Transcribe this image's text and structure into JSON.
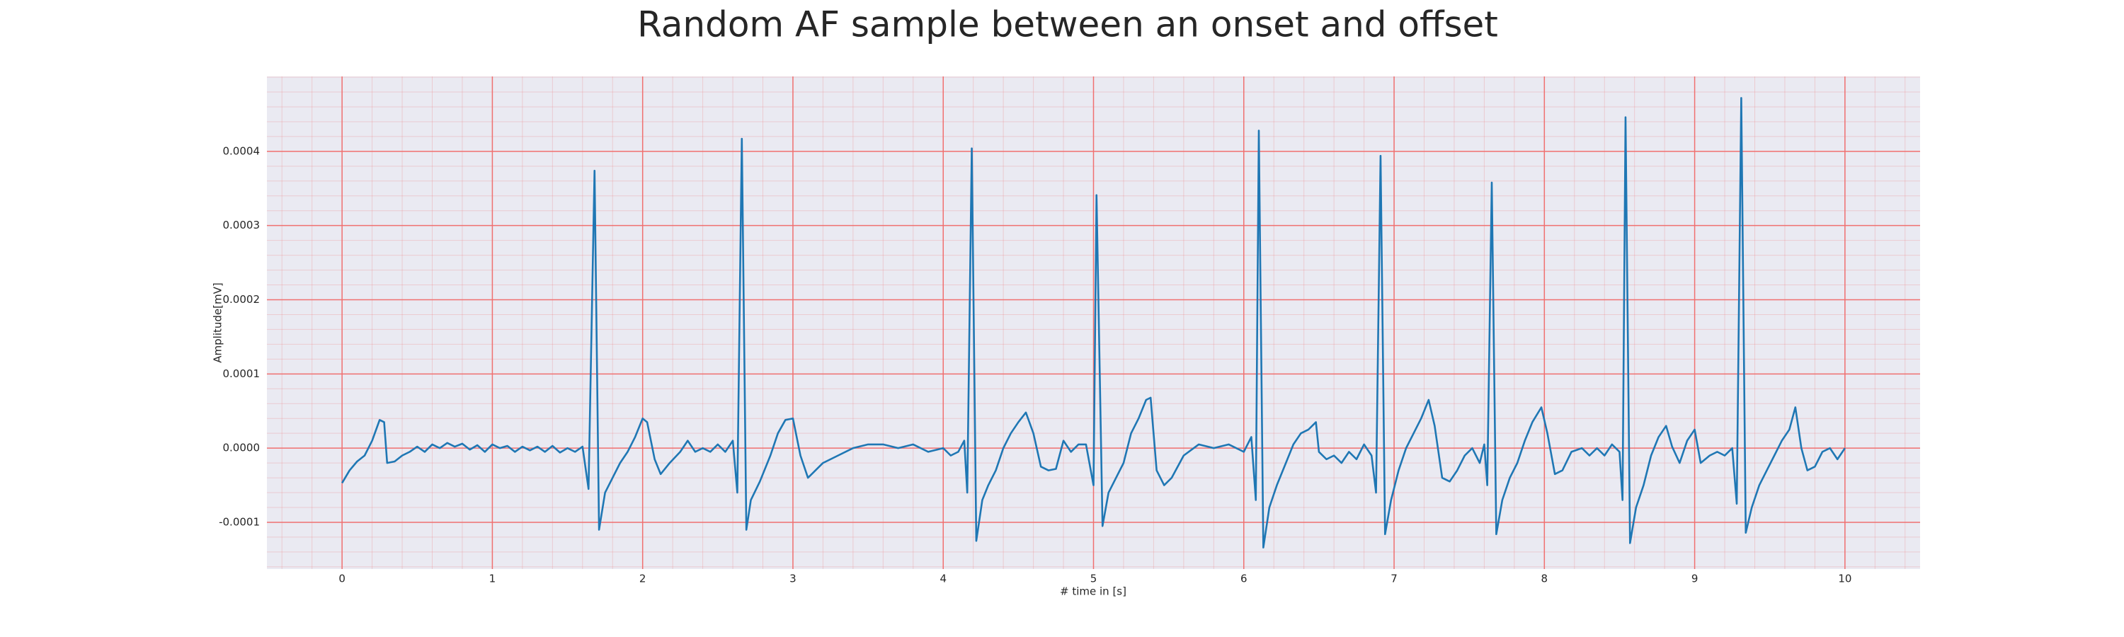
{
  "chart_data": {
    "type": "line",
    "title": "Random AF sample between an onset and offset",
    "xlabel": "# time in [s]",
    "ylabel": "Amplitude[mV]",
    "color": "#1f77b4",
    "grid": true,
    "grid_color": "#f07070",
    "minor_grid": true,
    "background": "#eaeaf2",
    "xlim": [
      -0.5,
      10.5
    ],
    "ylim": [
      -0.000163,
      0.000501
    ],
    "xticks": [
      0,
      1,
      2,
      3,
      4,
      5,
      6,
      7,
      8,
      9,
      10
    ],
    "yticks": [
      {
        "value": -0.0001,
        "label": "-0.0001"
      },
      {
        "value": 0,
        "label": "0.0000"
      },
      {
        "value": 0.0001,
        "label": "0.0001"
      },
      {
        "value": 0.0002,
        "label": "0.0002"
      },
      {
        "value": 0.0003,
        "label": "0.0003"
      },
      {
        "value": 0.0004,
        "label": "0.0004"
      }
    ],
    "x": [
      0,
      0.05,
      0.1,
      0.15,
      0.2,
      0.25,
      0.28,
      0.3,
      0.35,
      0.4,
      0.45,
      0.5,
      0.55,
      0.6,
      0.65,
      0.7,
      0.75,
      0.8,
      0.85,
      0.9,
      0.95,
      1.0,
      1.05,
      1.1,
      1.15,
      1.2,
      1.25,
      1.3,
      1.35,
      1.4,
      1.45,
      1.5,
      1.55,
      1.6,
      1.64,
      1.68,
      1.71,
      1.75,
      1.8,
      1.85,
      1.9,
      1.95,
      2.0,
      2.03,
      2.08,
      2.12,
      2.18,
      2.25,
      2.3,
      2.35,
      2.4,
      2.45,
      2.5,
      2.55,
      2.6,
      2.63,
      2.66,
      2.69,
      2.72,
      2.78,
      2.85,
      2.9,
      2.95,
      3.0,
      3.05,
      3.1,
      3.15,
      3.2,
      3.3,
      3.4,
      3.5,
      3.6,
      3.7,
      3.8,
      3.9,
      4.0,
      4.05,
      4.1,
      4.14,
      4.16,
      4.19,
      4.22,
      4.26,
      4.3,
      4.35,
      4.4,
      4.45,
      4.5,
      4.55,
      4.6,
      4.65,
      4.7,
      4.75,
      4.8,
      4.85,
      4.9,
      4.95,
      5.0,
      5.02,
      5.06,
      5.1,
      5.15,
      5.2,
      5.25,
      5.3,
      5.35,
      5.38,
      5.42,
      5.47,
      5.52,
      5.6,
      5.7,
      5.8,
      5.9,
      6.0,
      6.05,
      6.08,
      6.1,
      6.13,
      6.17,
      6.22,
      6.28,
      6.33,
      6.38,
      6.43,
      6.48,
      6.5,
      6.55,
      6.6,
      6.65,
      6.7,
      6.75,
      6.8,
      6.85,
      6.88,
      6.91,
      6.94,
      6.98,
      7.03,
      7.08,
      7.13,
      7.18,
      7.23,
      7.27,
      7.32,
      7.37,
      7.42,
      7.47,
      7.52,
      7.57,
      7.6,
      7.62,
      7.65,
      7.68,
      7.72,
      7.77,
      7.82,
      7.87,
      7.92,
      7.98,
      8.02,
      8.07,
      8.12,
      8.18,
      8.25,
      8.3,
      8.35,
      8.4,
      8.45,
      8.5,
      8.52,
      8.54,
      8.57,
      8.61,
      8.66,
      8.71,
      8.76,
      8.81,
      8.85,
      8.9,
      8.95,
      9.0,
      9.04,
      9.1,
      9.15,
      9.2,
      9.25,
      9.28,
      9.31,
      9.34,
      9.38,
      9.43,
      9.48,
      9.53,
      9.58,
      9.63,
      9.67,
      9.71,
      9.75,
      9.8,
      9.85,
      9.9,
      9.95,
      10.0
    ],
    "values": [
      -4.7e-05,
      -3e-05,
      -1.8e-05,
      -1e-05,
      1e-05,
      3.8e-05,
      3.5e-05,
      -2e-05,
      -1.8e-05,
      -1e-05,
      -5e-06,
      2e-06,
      -5e-06,
      5e-06,
      0,
      7e-06,
      2e-06,
      6e-06,
      -2e-06,
      4e-06,
      -5e-06,
      5e-06,
      0,
      3e-06,
      -5e-06,
      2e-06,
      -3e-06,
      2e-06,
      -5e-06,
      3e-06,
      -6e-06,
      0,
      -5e-06,
      2e-06,
      -5.5e-05,
      0.000374,
      -0.00011,
      -6e-05,
      -4e-05,
      -2e-05,
      -5e-06,
      1.5e-05,
      4e-05,
      3.5e-05,
      -1.5e-05,
      -3.5e-05,
      -2e-05,
      -5e-06,
      1e-05,
      -5e-06,
      0,
      -5e-06,
      5e-06,
      -5e-06,
      1e-05,
      -6e-05,
      0.000417,
      -0.00011,
      -7e-05,
      -4.5e-05,
      -1e-05,
      2e-05,
      3.8e-05,
      4e-05,
      -1e-05,
      -4e-05,
      -3e-05,
      -2e-05,
      -1e-05,
      0,
      5e-06,
      5e-06,
      0,
      5e-06,
      -5e-06,
      0,
      -1e-05,
      -5e-06,
      1e-05,
      -6e-05,
      0.000404,
      -0.000125,
      -7e-05,
      -5e-05,
      -3e-05,
      0,
      2e-05,
      3.5e-05,
      4.8e-05,
      2e-05,
      -2.5e-05,
      -3e-05,
      -2.8e-05,
      1e-05,
      -5e-06,
      5e-06,
      5e-06,
      -5e-05,
      0.000341,
      -0.000105,
      -6e-05,
      -4e-05,
      -2e-05,
      2e-05,
      4e-05,
      6.5e-05,
      6.8e-05,
      -3e-05,
      -5e-05,
      -4e-05,
      -1e-05,
      5e-06,
      0,
      5e-06,
      -5e-06,
      1.5e-05,
      -7e-05,
      0.000428,
      -0.000134,
      -8e-05,
      -5e-05,
      -2e-05,
      5e-06,
      2e-05,
      2.5e-05,
      3.5e-05,
      -5e-06,
      -1.5e-05,
      -1e-05,
      -2e-05,
      -5e-06,
      -1.5e-05,
      5e-06,
      -1e-05,
      -6e-05,
      0.000394,
      -0.000116,
      -7e-05,
      -3e-05,
      0,
      2e-05,
      4e-05,
      6.5e-05,
      3e-05,
      -4e-05,
      -4.5e-05,
      -3e-05,
      -1e-05,
      0,
      -2e-05,
      5e-06,
      -5e-05,
      0.000358,
      -0.000116,
      -7e-05,
      -4e-05,
      -2e-05,
      1e-05,
      3.5e-05,
      5.5e-05,
      2e-05,
      -3.5e-05,
      -3e-05,
      -5e-06,
      0,
      -1e-05,
      0,
      -1e-05,
      5e-06,
      -5e-06,
      -7e-05,
      0.000446,
      -0.000128,
      -8e-05,
      -5e-05,
      -1e-05,
      1.5e-05,
      3e-05,
      2e-06,
      -2e-05,
      1e-05,
      2.5e-05,
      -2e-05,
      -1e-05,
      -5e-06,
      -1e-05,
      0,
      -7.5e-05,
      0.000472,
      -0.000114,
      -8e-05,
      -5e-05,
      -3e-05,
      -1e-05,
      1e-05,
      2.5e-05,
      5.5e-05,
      0,
      -3e-05,
      -2.5e-05,
      -5e-06,
      0,
      -1.5e-05,
      0
    ]
  }
}
